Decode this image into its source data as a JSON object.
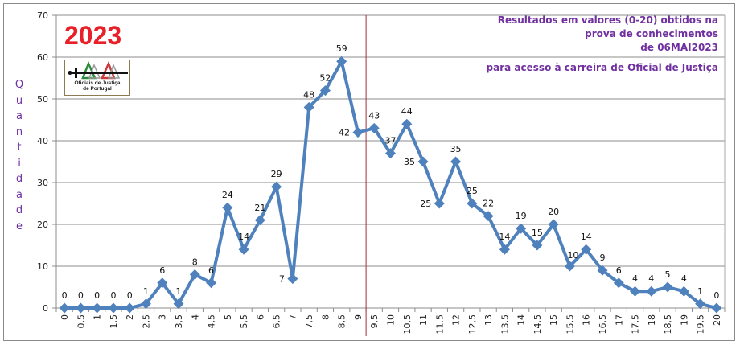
{
  "chart_data": {
    "type": "line",
    "title": "Resultados em valores (0-20) obtidos na prova de conhecimentos de 06MAI2023",
    "subtitle": "para acesso à carreira de Oficial de Justiça",
    "year_label": "2023",
    "logo_text": [
      "Oficiais de Justiça",
      "de Portugal"
    ],
    "xlabel": "",
    "ylabel": "Quantidade",
    "ylim": [
      0,
      70
    ],
    "yticks": [
      0,
      10,
      20,
      30,
      40,
      50,
      60,
      70
    ],
    "grid": true,
    "legend": "none",
    "reference_line_x": "9,5 (between 9 and 9,5)",
    "categories": [
      "0",
      "0,5",
      "1",
      "1,5",
      "2",
      "2,5",
      "3",
      "3,5",
      "4",
      "4,5",
      "5",
      "5,5",
      "6",
      "6,5",
      "7",
      "7,5",
      "8",
      "8,5",
      "9",
      "9,5",
      "10",
      "10,5",
      "11",
      "11,5",
      "12",
      "12,5",
      "13",
      "13,5",
      "14",
      "14,5",
      "15",
      "15,5",
      "16",
      "16,5",
      "17",
      "17,5",
      "18",
      "18,5",
      "19",
      "19,5",
      "20"
    ],
    "series": [
      {
        "name": "Quantidade",
        "color": "#4f81bd",
        "values": [
          0,
          0,
          0,
          0,
          0,
          1,
          6,
          1,
          8,
          6,
          24,
          14,
          21,
          29,
          7,
          48,
          52,
          59,
          42,
          43,
          37,
          44,
          35,
          25,
          35,
          25,
          22,
          14,
          19,
          15,
          20,
          10,
          14,
          9,
          6,
          4,
          4,
          5,
          4,
          1,
          0
        ]
      }
    ]
  },
  "colors": {
    "series": "#4f81bd",
    "title": "#7030a0",
    "year": "#e8202a",
    "reference_line": "#a0303a",
    "grid": "#8c8c8c"
  },
  "header": {
    "title_lines": [
      "Resultados em valores (0-20) obtidos na",
      "prova de conhecimentos",
      "de 06MAI2023"
    ],
    "subtitle": "para acesso à carreira de Oficial de Justiça",
    "year": "2023",
    "logo_line1": "Oficiais de Justiça",
    "logo_line2": "de Portugal"
  },
  "axis": {
    "ylabel_letters": [
      "Q",
      "u",
      "a",
      "n",
      "t",
      "i",
      "d",
      "a",
      "d",
      "e"
    ]
  }
}
